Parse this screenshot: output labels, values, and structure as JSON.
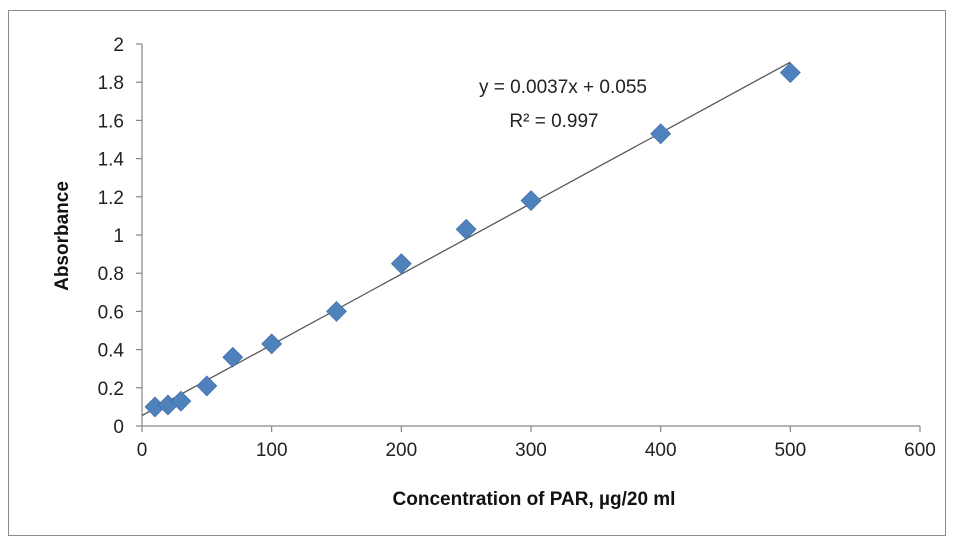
{
  "chart_data": {
    "type": "scatter",
    "title": "",
    "xlabel": "Concentration of PAR, µg/20 ml",
    "ylabel": "Absorbance",
    "xlim": [
      0,
      600
    ],
    "ylim": [
      0,
      2
    ],
    "xticks": [
      "0",
      "100",
      "200",
      "300",
      "400",
      "500",
      "600"
    ],
    "yticks": [
      "0",
      "0.2",
      "0.4",
      "0.6",
      "0.8",
      "1",
      "1.2",
      "1.4",
      "1.6",
      "1.8",
      "2"
    ],
    "grid": false,
    "legend": "none",
    "series": [
      {
        "marker": "diamond",
        "color": "#4f81bd",
        "x": [
          10,
          20,
          30,
          50,
          70,
          100,
          150,
          200,
          250,
          300,
          400,
          500
        ],
        "y": [
          0.1,
          0.11,
          0.13,
          0.21,
          0.36,
          0.43,
          0.6,
          0.85,
          1.03,
          1.18,
          1.53,
          1.85
        ]
      }
    ],
    "trendline": {
      "type": "linear",
      "slope": 0.0037,
      "intercept": 0.055,
      "x_range": [
        0,
        500
      ],
      "color": "#595959"
    },
    "annotations": {
      "equation": "y = 0.0037x + 0.055",
      "r_squared": "R² = 0.997"
    }
  }
}
